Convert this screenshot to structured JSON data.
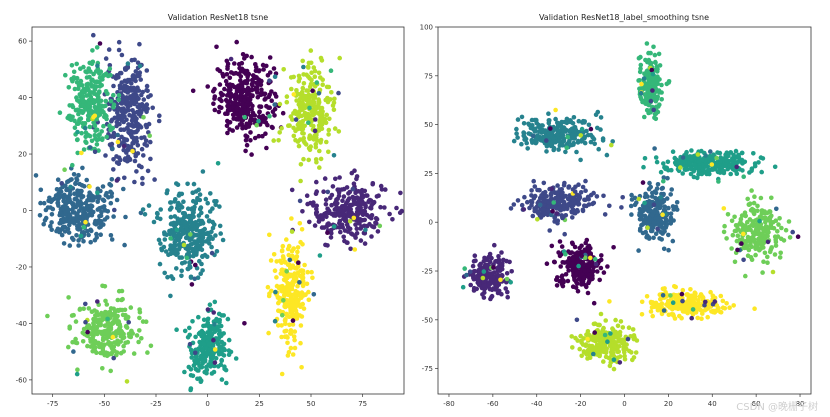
{
  "watermark": "CSDN @晚栅子树",
  "chart_data": [
    {
      "type": "scatter",
      "title": "Validation ResNet18 tsne",
      "xlabel": "",
      "ylabel": "",
      "xlim": [
        -85,
        95
      ],
      "ylim": [
        -65,
        65
      ],
      "xticks": [
        "-75",
        "-50",
        "-25",
        "0",
        "25",
        "50",
        "75"
      ],
      "xtick_values": [
        -75,
        -50,
        -25,
        0,
        25,
        50,
        75
      ],
      "yticks": [
        "60",
        "40",
        "20",
        "0",
        "-20",
        "-40",
        "-60"
      ],
      "ytick_values": [
        60,
        40,
        20,
        0,
        -20,
        -40,
        -60
      ],
      "colormap": [
        "#440154",
        "#482878",
        "#3e4989",
        "#31688e",
        "#26828e",
        "#1f9e89",
        "#35b779",
        "#6ece58",
        "#b5de2b",
        "#fde725"
      ],
      "clusters": [
        {
          "class": 0,
          "center": [
            18,
            40
          ],
          "spread": [
            13,
            12
          ],
          "count": 320
        },
        {
          "class": 1,
          "center": [
            68,
            0
          ],
          "spread": [
            17,
            10
          ],
          "count": 260
        },
        {
          "class": 2,
          "center": [
            -38,
            33
          ],
          "spread": [
            10,
            20
          ],
          "count": 300
        },
        {
          "class": 3,
          "center": [
            -62,
            0
          ],
          "spread": [
            15,
            11
          ],
          "count": 300
        },
        {
          "class": 4,
          "center": [
            -10,
            -8
          ],
          "spread": [
            13,
            14
          ],
          "count": 300
        },
        {
          "class": 5,
          "center": [
            0,
            -48
          ],
          "spread": [
            9,
            11
          ],
          "count": 220
        },
        {
          "class": 6,
          "center": [
            -57,
            38
          ],
          "spread": [
            10,
            13
          ],
          "count": 260
        },
        {
          "class": 7,
          "center": [
            -50,
            -42
          ],
          "spread": [
            14,
            10
          ],
          "count": 250
        },
        {
          "class": 8,
          "center": [
            50,
            35
          ],
          "spread": [
            10,
            14
          ],
          "count": 240
        },
        {
          "class": 9,
          "center": [
            40,
            -28
          ],
          "spread": [
            7,
            17
          ],
          "count": 260
        }
      ]
    },
    {
      "type": "scatter",
      "title": "Validation ResNet18_label_smoothing tsne",
      "xlabel": "",
      "ylabel": "",
      "xlim": [
        -85,
        85
      ],
      "ylim": [
        -88,
        100
      ],
      "xticks": [
        "-80",
        "-60",
        "-40",
        "-20",
        "0",
        "20",
        "40",
        "60",
        "80"
      ],
      "xtick_values": [
        -80,
        -60,
        -40,
        -20,
        0,
        20,
        40,
        60,
        80
      ],
      "yticks": [
        "100",
        "75",
        "50",
        "25",
        "0",
        "-25",
        "-50",
        "-75"
      ],
      "ytick_values": [
        100,
        75,
        50,
        25,
        0,
        -25,
        -50,
        -75
      ],
      "colormap": [
        "#440154",
        "#482878",
        "#3e4989",
        "#31688e",
        "#26828e",
        "#1f9e89",
        "#35b779",
        "#6ece58",
        "#b5de2b",
        "#fde725"
      ],
      "clusters": [
        {
          "class": 0,
          "center": [
            -20,
            -22
          ],
          "spread": [
            9,
            10
          ],
          "count": 230
        },
        {
          "class": 1,
          "center": [
            -62,
            -28
          ],
          "spread": [
            8,
            9
          ],
          "count": 200
        },
        {
          "class": 2,
          "center": [
            -30,
            10
          ],
          "spread": [
            14,
            8
          ],
          "count": 230
        },
        {
          "class": 3,
          "center": [
            14,
            5
          ],
          "spread": [
            8,
            12
          ],
          "count": 200
        },
        {
          "class": 4,
          "center": [
            -30,
            45
          ],
          "spread": [
            16,
            8
          ],
          "count": 240
        },
        {
          "class": 5,
          "center": [
            38,
            30
          ],
          "spread": [
            20,
            6
          ],
          "count": 260
        },
        {
          "class": 6,
          "center": [
            12,
            70
          ],
          "spread": [
            5,
            14
          ],
          "count": 200
        },
        {
          "class": 7,
          "center": [
            60,
            -5
          ],
          "spread": [
            10,
            14
          ],
          "count": 220
        },
        {
          "class": 8,
          "center": [
            -8,
            -62
          ],
          "spread": [
            11,
            9
          ],
          "count": 220
        },
        {
          "class": 9,
          "center": [
            28,
            -42
          ],
          "spread": [
            16,
            6
          ],
          "count": 250
        }
      ]
    }
  ]
}
